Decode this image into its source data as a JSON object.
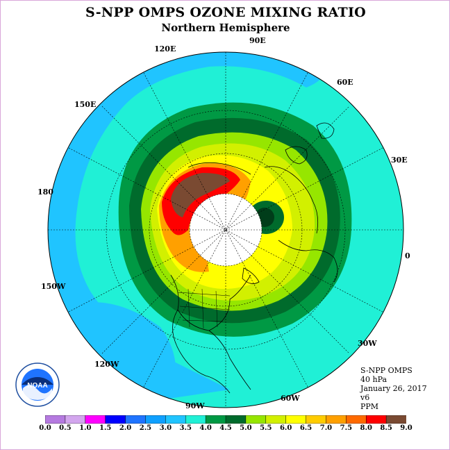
{
  "title": "S-NPP OMPS OZONE MIXING RATIO",
  "subtitle": "Northern Hemisphere",
  "longitude_labels": [
    {
      "text": "90E"
    },
    {
      "text": "120E"
    },
    {
      "text": "60E"
    },
    {
      "text": "150E"
    },
    {
      "text": "30E"
    },
    {
      "text": "180"
    },
    {
      "text": "0"
    },
    {
      "text": "150W"
    },
    {
      "text": "30W"
    },
    {
      "text": "120W"
    },
    {
      "text": "60W"
    },
    {
      "text": "90W"
    }
  ],
  "info": {
    "instrument": "S-NPP OMPS",
    "level": "40 hPa",
    "date": "January 26, 2017",
    "version": "v6",
    "units": "PPM"
  },
  "colorbar": {
    "ticks": [
      "0.0",
      "0.5",
      "1.0",
      "1.5",
      "2.0",
      "2.5",
      "3.0",
      "3.5",
      "4.0",
      "4.5",
      "5.0",
      "5.5",
      "6.0",
      "6.5",
      "7.0",
      "7.5",
      "8.0",
      "8.5",
      "9.0"
    ],
    "colors": [
      "#b57ae0",
      "#d3a6ee",
      "#ff00ff",
      "#0000ff",
      "#1f74ff",
      "#0fa0ff",
      "#20c4ff",
      "#20f0d6",
      "#009944",
      "#006b2c",
      "#96e600",
      "#d2f000",
      "#ffff00",
      "#ffcc00",
      "#ffa000",
      "#ff6a00",
      "#ff0000",
      "#7a4a32"
    ]
  },
  "map": {
    "projection": "north polar stereographic",
    "hemisphere": "Northern",
    "no_data_region": "polar night (white disk)",
    "colors": {
      "ocean_background": "#20c4ff",
      "ring_cyan": "#20f0d6",
      "ring_green": "#009944",
      "ring_dark_green": "#006b2c",
      "ring_lime": "#96e600",
      "ring_yellow_green": "#d2f000",
      "ring_yellow": "#ffff00",
      "ring_orange": "#ffa000",
      "ring_red": "#ff0000",
      "max_brown": "#7a4a32"
    }
  },
  "logo": {
    "text": "NOAA"
  }
}
